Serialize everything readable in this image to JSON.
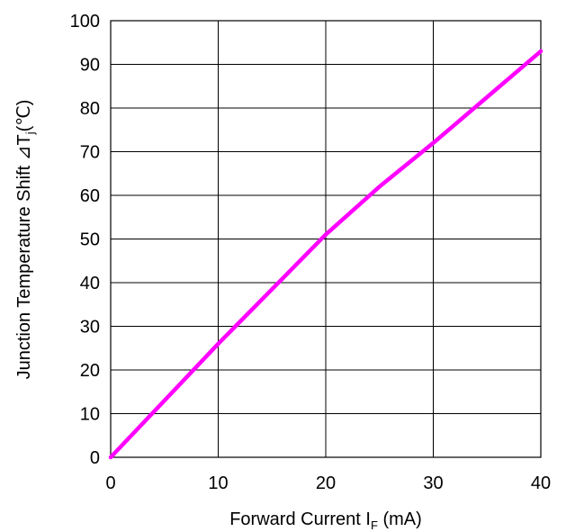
{
  "chart_data": {
    "type": "line",
    "title": "",
    "xlabel": {
      "main": "Forward Current I",
      "subscript": "F",
      "unit": " (mA)"
    },
    "ylabel": {
      "main": "Junction Temperature Shift  ⊿T",
      "subscript": "j",
      "unit": "(℃)"
    },
    "xlim": [
      0,
      40
    ],
    "ylim": [
      0,
      100
    ],
    "xticks": [
      0,
      10,
      20,
      30,
      40
    ],
    "yticks": [
      0,
      10,
      20,
      30,
      40,
      50,
      60,
      70,
      80,
      90,
      100
    ],
    "grid": true,
    "series": [
      {
        "color": "#ff00ff",
        "x": [
          0,
          5,
          10,
          15,
          20,
          25,
          30,
          35,
          40
        ],
        "y": [
          0,
          13,
          26,
          38.5,
          51,
          62,
          72,
          82.5,
          93
        ]
      }
    ]
  }
}
